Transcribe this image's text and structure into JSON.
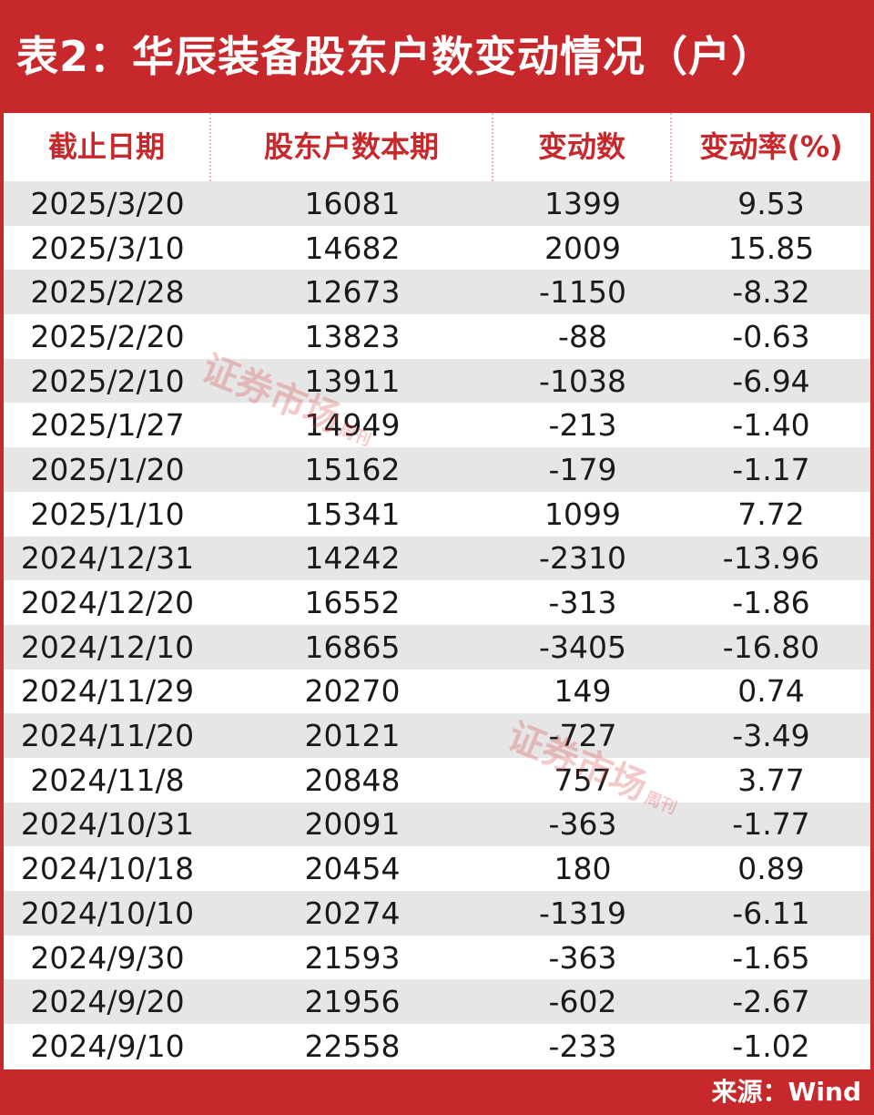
{
  "title": "表2：华辰装备股东户数变动情况（户）",
  "headers": [
    "截止日期",
    "股东户数本期",
    "变动数",
    "变动率(%)"
  ],
  "rows": [
    [
      "2025/3/20",
      "16081",
      "1399",
      "9.53"
    ],
    [
      "2025/3/10",
      "14682",
      "2009",
      "15.85"
    ],
    [
      "2025/2/28",
      "12673",
      "-1150",
      "-8.32"
    ],
    [
      "2025/2/20",
      "13823",
      "-88",
      "-0.63"
    ],
    [
      "2025/2/10",
      "13911",
      "-1038",
      "-6.94"
    ],
    [
      "2025/1/27",
      "14949",
      "-213",
      "-1.40"
    ],
    [
      "2025/1/20",
      "15162",
      "-179",
      "-1.17"
    ],
    [
      "2025/1/10",
      "15341",
      "1099",
      "7.72"
    ],
    [
      "2024/12/31",
      "14242",
      "-2310",
      "-13.96"
    ],
    [
      "2024/12/20",
      "16552",
      "-313",
      "-1.86"
    ],
    [
      "2024/12/10",
      "16865",
      "-3405",
      "-16.80"
    ],
    [
      "2024/11/29",
      "20270",
      "149",
      "0.74"
    ],
    [
      "2024/11/20",
      "20121",
      "-727",
      "-3.49"
    ],
    [
      "2024/11/8",
      "20848",
      "757",
      "3.77"
    ],
    [
      "2024/10/31",
      "20091",
      "-363",
      "-1.77"
    ],
    [
      "2024/10/18",
      "20454",
      "180",
      "0.89"
    ],
    [
      "2024/10/10",
      "20274",
      "-1319",
      "-6.11"
    ],
    [
      "2024/9/30",
      "21593",
      "-363",
      "-1.65"
    ],
    [
      "2024/9/20",
      "21956",
      "-602",
      "-2.67"
    ],
    [
      "2024/9/10",
      "22558",
      "-233",
      "-1.02"
    ]
  ],
  "footer": "来源：Wind",
  "watermark": {
    "main": "证券市场",
    "sub": "周刊"
  },
  "colors": {
    "accent": "#c7282b",
    "shaded_row": "#e6e6e6"
  }
}
